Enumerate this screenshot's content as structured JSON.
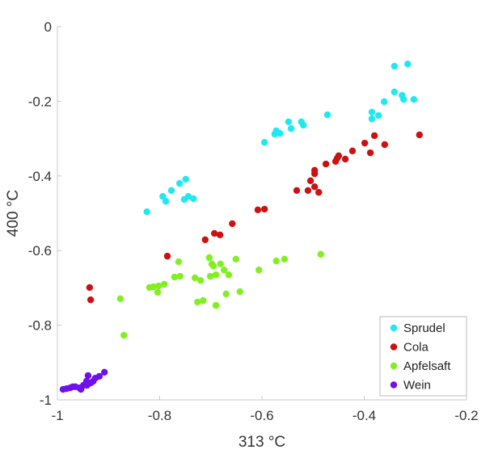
{
  "chart_data": {
    "type": "scatter",
    "title": "",
    "xlabel": "313 °C",
    "ylabel": "400 °C",
    "xlim": [
      -1,
      -0.2
    ],
    "ylim": [
      -1,
      0
    ],
    "xticks": [
      "-1",
      "-0.8",
      "-0.6",
      "-0.4",
      "-0.2"
    ],
    "xtick_values": [
      -1,
      -0.8,
      -0.6,
      -0.4,
      -0.2
    ],
    "yticks": [
      "0",
      "-0.2",
      "-0.4",
      "-0.6",
      "-0.8",
      "-1"
    ],
    "ytick_values": [
      0,
      -0.2,
      -0.4,
      -0.6,
      -0.8,
      -1
    ],
    "grid": false,
    "legend_position": "bottom-right",
    "series": [
      {
        "name": "Sprudel",
        "color": "#1ee8f0",
        "points": [
          [
            -0.341,
            -0.106
          ],
          [
            -0.315,
            -0.1
          ],
          [
            -0.341,
            -0.175
          ],
          [
            -0.326,
            -0.184
          ],
          [
            -0.323,
            -0.195
          ],
          [
            -0.303,
            -0.195
          ],
          [
            -0.361,
            -0.201
          ],
          [
            -0.385,
            -0.229
          ],
          [
            -0.372,
            -0.238
          ],
          [
            -0.385,
            -0.247
          ],
          [
            -0.472,
            -0.236
          ],
          [
            -0.523,
            -0.255
          ],
          [
            -0.519,
            -0.264
          ],
          [
            -0.548,
            -0.255
          ],
          [
            -0.543,
            -0.273
          ],
          [
            -0.572,
            -0.279
          ],
          [
            -0.575,
            -0.288
          ],
          [
            -0.565,
            -0.286
          ],
          [
            -0.595,
            -0.31
          ],
          [
            -0.825,
            -0.496
          ],
          [
            -0.794,
            -0.455
          ],
          [
            -0.788,
            -0.468
          ],
          [
            -0.777,
            -0.439
          ],
          [
            -0.761,
            -0.42
          ],
          [
            -0.749,
            -0.409
          ],
          [
            -0.752,
            -0.463
          ],
          [
            -0.744,
            -0.455
          ],
          [
            -0.734,
            -0.461
          ]
        ]
      },
      {
        "name": "Cola",
        "color": "#cc1111",
        "points": [
          [
            -0.292,
            -0.29
          ],
          [
            -0.38,
            -0.292
          ],
          [
            -0.399,
            -0.312
          ],
          [
            -0.36,
            -0.316
          ],
          [
            -0.388,
            -0.338
          ],
          [
            -0.423,
            -0.333
          ],
          [
            -0.437,
            -0.355
          ],
          [
            -0.45,
            -0.346
          ],
          [
            -0.456,
            -0.361
          ],
          [
            -0.453,
            -0.353
          ],
          [
            -0.475,
            -0.368
          ],
          [
            -0.497,
            -0.385
          ],
          [
            -0.497,
            -0.394
          ],
          [
            -0.505,
            -0.413
          ],
          [
            -0.497,
            -0.429
          ],
          [
            -0.489,
            -0.444
          ],
          [
            -0.51,
            -0.439
          ],
          [
            -0.532,
            -0.439
          ],
          [
            -0.608,
            -0.491
          ],
          [
            -0.595,
            -0.489
          ],
          [
            -0.658,
            -0.528
          ],
          [
            -0.693,
            -0.554
          ],
          [
            -0.682,
            -0.558
          ],
          [
            -0.711,
            -0.571
          ],
          [
            -0.785,
            -0.615
          ],
          [
            -0.937,
            -0.699
          ],
          [
            -0.935,
            -0.732
          ]
        ]
      },
      {
        "name": "Apfelsaft",
        "color": "#80f020",
        "points": [
          [
            -0.485,
            -0.61
          ],
          [
            -0.556,
            -0.623
          ],
          [
            -0.572,
            -0.628
          ],
          [
            -0.606,
            -0.652
          ],
          [
            -0.651,
            -0.623
          ],
          [
            -0.703,
            -0.619
          ],
          [
            -0.763,
            -0.63
          ],
          [
            -0.698,
            -0.636
          ],
          [
            -0.695,
            -0.641
          ],
          [
            -0.681,
            -0.636
          ],
          [
            -0.674,
            -0.652
          ],
          [
            -0.665,
            -0.665
          ],
          [
            -0.69,
            -0.665
          ],
          [
            -0.701,
            -0.669
          ],
          [
            -0.76,
            -0.669
          ],
          [
            -0.771,
            -0.671
          ],
          [
            -0.731,
            -0.673
          ],
          [
            -0.72,
            -0.68
          ],
          [
            -0.791,
            -0.69
          ],
          [
            -0.802,
            -0.695
          ],
          [
            -0.812,
            -0.697
          ],
          [
            -0.82,
            -0.699
          ],
          [
            -0.804,
            -0.712
          ],
          [
            -0.643,
            -0.71
          ],
          [
            -0.67,
            -0.716
          ],
          [
            -0.715,
            -0.734
          ],
          [
            -0.726,
            -0.738
          ],
          [
            -0.69,
            -0.747
          ],
          [
            -0.877,
            -0.729
          ],
          [
            -0.87,
            -0.827
          ]
        ]
      },
      {
        "name": "Wein",
        "color": "#7010ee",
        "points": [
          [
            -0.989,
            -0.972
          ],
          [
            -0.975,
            -0.968
          ],
          [
            -0.965,
            -0.965
          ],
          [
            -0.957,
            -0.968
          ],
          [
            -0.949,
            -0.961
          ],
          [
            -0.943,
            -0.95
          ],
          [
            -0.94,
            -0.935
          ],
          [
            -0.93,
            -0.95
          ],
          [
            -0.926,
            -0.942
          ],
          [
            -0.918,
            -0.937
          ],
          [
            -0.908,
            -0.926
          ],
          [
            -0.942,
            -0.961
          ],
          [
            -0.954,
            -0.972
          ],
          [
            -0.97,
            -0.965
          ],
          [
            -0.935,
            -0.955
          ],
          [
            -0.982,
            -0.97
          ]
        ]
      }
    ]
  }
}
